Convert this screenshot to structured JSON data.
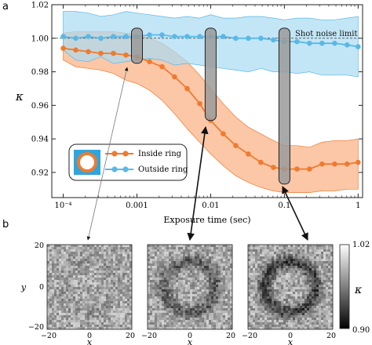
{
  "panel_labels": {
    "top": "a",
    "bottom": "b"
  },
  "colors": {
    "inside": "#f07a2f",
    "inside_band": "#f9b48a",
    "outside": "#5bb8e6",
    "outside_band": "#a9dcf2",
    "bar_fill": "#9a9a9a",
    "legend_bg": "#2fa5dc"
  },
  "chart_data": {
    "type": "line",
    "xlabel": "Exposure time (sec)",
    "ylabel": "κ",
    "x_scale": "log",
    "xlim": [
      7e-05,
      1.15
    ],
    "ylim": [
      0.905,
      1.02
    ],
    "xticks": [
      {
        "value": 0.0001,
        "label": "10⁻⁴"
      },
      {
        "value": 0.001,
        "label": "0.001"
      },
      {
        "value": 0.01,
        "label": "0.01"
      },
      {
        "value": 0.1,
        "label": "0.1"
      },
      {
        "value": 1,
        "label": "1"
      }
    ],
    "yticks": [
      {
        "value": 0.92,
        "label": "0.92"
      },
      {
        "value": 0.94,
        "label": "0.94"
      },
      {
        "value": 0.96,
        "label": "0.96"
      },
      {
        "value": 0.98,
        "label": "0.98"
      },
      {
        "value": 1.0,
        "label": "1.00"
      },
      {
        "value": 1.02,
        "label": "1.02"
      }
    ],
    "reference_line": {
      "y": 1.0,
      "label": "Shot noise limit"
    },
    "x": [
      0.0001,
      0.000148,
      0.000219,
      0.000324,
      0.00048,
      0.00071,
      0.001,
      0.00148,
      0.00219,
      0.00324,
      0.0048,
      0.0071,
      0.01,
      0.0148,
      0.0219,
      0.0324,
      0.048,
      0.071,
      0.1,
      0.148,
      0.219,
      0.324,
      0.48,
      0.71,
      1.0
    ],
    "series": [
      {
        "name": "Inside ring",
        "values": [
          0.994,
          0.993,
          0.992,
          0.991,
          0.991,
          0.99,
          0.989,
          0.986,
          0.983,
          0.977,
          0.97,
          0.961,
          0.951,
          0.943,
          0.936,
          0.931,
          0.926,
          0.923,
          0.922,
          0.922,
          0.922,
          0.925,
          0.925,
          0.925,
          0.926
        ],
        "lower": [
          0.987,
          0.983,
          0.982,
          0.981,
          0.979,
          0.975,
          0.973,
          0.969,
          0.963,
          0.955,
          0.946,
          0.938,
          0.931,
          0.924,
          0.918,
          0.914,
          0.911,
          0.909,
          0.908,
          0.908,
          0.908,
          0.909,
          0.909,
          0.91,
          0.91
        ],
        "upper": [
          1.003,
          1.004,
          1.004,
          1.004,
          1.004,
          1.003,
          1.002,
          1.0,
          0.997,
          0.992,
          0.986,
          0.978,
          0.97,
          0.961,
          0.953,
          0.947,
          0.943,
          0.939,
          0.936,
          0.936,
          0.935,
          0.938,
          0.939,
          0.939,
          0.94
        ]
      },
      {
        "name": "Outside ring",
        "values": [
          1.001,
          1.0,
          1.001,
          1.0,
          1.001,
          1.001,
          1.001,
          1.002,
          1.002,
          1.001,
          1.001,
          1.001,
          1.001,
          1.001,
          1.0,
          1.0,
          1.0,
          0.999,
          0.998,
          0.998,
          0.997,
          0.997,
          0.997,
          0.996,
          0.995
        ],
        "lower": [
          0.993,
          0.987,
          0.986,
          0.989,
          0.985,
          0.986,
          0.987,
          0.988,
          0.987,
          0.984,
          0.985,
          0.984,
          0.983,
          0.982,
          0.981,
          0.98,
          0.982,
          0.98,
          0.98,
          0.979,
          0.98,
          0.978,
          0.978,
          0.978,
          0.977
        ],
        "upper": [
          1.016,
          1.016,
          1.015,
          1.013,
          1.014,
          1.016,
          1.015,
          1.014,
          1.013,
          1.012,
          1.013,
          1.012,
          1.014,
          1.012,
          1.012,
          1.013,
          1.013,
          1.012,
          1.011,
          1.012,
          1.012,
          1.011,
          1.011,
          1.012,
          1.013
        ]
      }
    ],
    "highlight_bars": [
      {
        "x": 0.001,
        "y_bottom": 0.985,
        "y_top": 1.006
      },
      {
        "x": 0.01,
        "y_bottom": 0.951,
        "y_top": 1.006
      },
      {
        "x": 0.1,
        "y_bottom": 0.913,
        "y_top": 1.006
      }
    ],
    "legend": {
      "position": "lower-left",
      "entries": [
        "Inside ring",
        "Outside ring"
      ]
    }
  },
  "images": {
    "xlabel": "x",
    "ylabel": "y",
    "ticks": [
      "−20",
      "0",
      "20"
    ],
    "ring_strength": [
      0.1,
      0.55,
      0.8
    ],
    "colorbar": {
      "label": "κ",
      "max": "1.02",
      "min": "0.90"
    }
  }
}
